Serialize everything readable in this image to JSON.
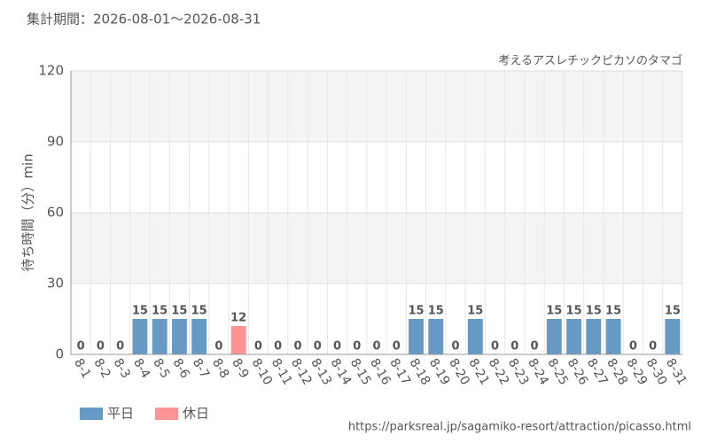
{
  "chart_data": {
    "type": "bar",
    "title": "集計期間：2026-08-01～2026-08-31",
    "subtitle": "考えるアスレチックピカソのタマゴ",
    "y_label": "待ち時間（分）min",
    "source": "https://parksreal.jp/sagamiko-resort/attraction/picasso.html",
    "categories": [
      "8-1",
      "8-2",
      "8-3",
      "8-4",
      "8-5",
      "8-6",
      "8-7",
      "8-8",
      "8-9",
      "8-10",
      "8-11",
      "8-12",
      "8-13",
      "8-14",
      "8-15",
      "8-16",
      "8-17",
      "8-18",
      "8-19",
      "8-20",
      "8-21",
      "8-22",
      "8-23",
      "8-24",
      "8-25",
      "8-26",
      "8-27",
      "8-28",
      "8-29",
      "8-30",
      "8-31"
    ],
    "series": [
      {
        "name": "平日",
        "color": "#6699c4",
        "values": [
          null,
          null,
          0,
          15,
          15,
          15,
          15,
          null,
          null,
          0,
          null,
          0,
          0,
          0,
          null,
          null,
          0,
          15,
          15,
          0,
          15,
          null,
          null,
          0,
          15,
          15,
          15,
          15,
          null,
          null,
          15
        ]
      },
      {
        "name": "休日",
        "color": "#ff9494",
        "values": [
          0,
          0,
          null,
          null,
          null,
          null,
          null,
          0,
          12,
          null,
          0,
          null,
          null,
          null,
          0,
          0,
          null,
          null,
          null,
          null,
          null,
          0,
          0,
          null,
          null,
          null,
          null,
          null,
          0,
          0,
          null
        ]
      }
    ],
    "ylim": [
      0,
      120
    ],
    "yticks": [
      0,
      30,
      60,
      90,
      120
    ],
    "grid": true
  }
}
